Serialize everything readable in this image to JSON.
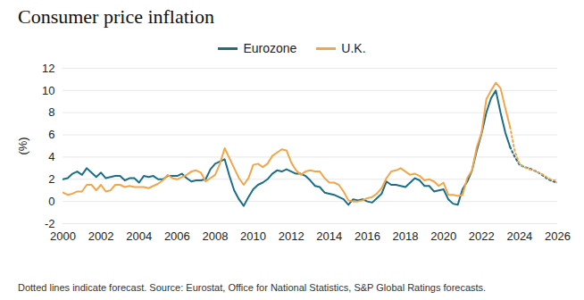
{
  "chart_data": {
    "type": "line",
    "title": "Consumer price inflation",
    "y_label": "(%)",
    "note": "Dotted lines indicate forecast. Source: Eurostat, Office for National Statistics, S&P Global Ratings forecasts.",
    "x": [
      2000,
      2000.25,
      2000.5,
      2000.75,
      2001,
      2001.25,
      2001.5,
      2001.75,
      2002,
      2002.25,
      2002.5,
      2002.75,
      2003,
      2003.25,
      2003.5,
      2003.75,
      2004,
      2004.25,
      2004.5,
      2004.75,
      2005,
      2005.25,
      2005.5,
      2005.75,
      2006,
      2006.25,
      2006.5,
      2006.75,
      2007,
      2007.25,
      2007.5,
      2007.75,
      2008,
      2008.25,
      2008.5,
      2008.75,
      2009,
      2009.25,
      2009.5,
      2009.75,
      2010,
      2010.25,
      2010.5,
      2010.75,
      2011,
      2011.25,
      2011.5,
      2011.75,
      2012,
      2012.25,
      2012.5,
      2012.75,
      2013,
      2013.25,
      2013.5,
      2013.75,
      2014,
      2014.25,
      2014.5,
      2014.75,
      2015,
      2015.25,
      2015.5,
      2015.75,
      2016,
      2016.25,
      2016.5,
      2016.75,
      2017,
      2017.25,
      2017.5,
      2017.75,
      2018,
      2018.25,
      2018.5,
      2018.75,
      2019,
      2019.25,
      2019.5,
      2019.75,
      2020,
      2020.25,
      2020.5,
      2020.75,
      2021,
      2021.25,
      2021.5,
      2021.75,
      2022,
      2022.25,
      2022.5,
      2022.75,
      2023,
      2023.25,
      2023.5,
      2023.75,
      2024,
      2024.25,
      2024.5,
      2024.75,
      2025,
      2025.25,
      2025.5,
      2025.75,
      2026
    ],
    "series": [
      {
        "name": "Eurozone",
        "color": "#1b6e85",
        "line_style": "solid",
        "values": [
          2.0,
          2.1,
          2.5,
          2.7,
          2.4,
          3.0,
          2.6,
          2.2,
          2.6,
          2.1,
          2.2,
          2.3,
          2.3,
          1.9,
          2.1,
          2.1,
          1.7,
          2.3,
          2.2,
          2.3,
          2.0,
          2.0,
          2.3,
          2.3,
          2.3,
          2.5,
          2.1,
          1.8,
          1.9,
          1.9,
          2.0,
          2.9,
          3.4,
          3.6,
          3.8,
          2.3,
          1.0,
          0.2,
          -0.4,
          0.4,
          1.1,
          1.5,
          1.7,
          2.0,
          2.5,
          2.8,
          2.7,
          2.9,
          2.7,
          2.5,
          2.5,
          2.3,
          1.9,
          1.4,
          1.3,
          0.8,
          0.7,
          0.6,
          0.4,
          0.2,
          -0.3,
          0.2,
          0.1,
          0.2,
          0.0,
          -0.1,
          0.3,
          0.7,
          1.8,
          1.5,
          1.5,
          1.4,
          1.3,
          1.7,
          2.1,
          1.9,
          1.4,
          1.4,
          0.9,
          1.0,
          1.1,
          0.2,
          -0.2,
          -0.3,
          1.1,
          1.8,
          2.8,
          4.6,
          6.1,
          8.0,
          9.3,
          10.0,
          8.0,
          6.2,
          4.9,
          null,
          null,
          null,
          null,
          null,
          null,
          null,
          null,
          null,
          null
        ]
      },
      {
        "name": "U.K.",
        "color": "#f2a649",
        "line_style": "solid",
        "values": [
          0.8,
          0.6,
          0.7,
          0.9,
          0.9,
          1.5,
          1.5,
          1.0,
          1.5,
          0.9,
          1.0,
          1.5,
          1.5,
          1.3,
          1.4,
          1.3,
          1.3,
          1.3,
          1.2,
          1.4,
          1.6,
          1.9,
          2.4,
          2.1,
          2.0,
          2.2,
          2.4,
          2.7,
          2.8,
          2.6,
          1.8,
          2.1,
          2.4,
          3.4,
          4.8,
          3.9,
          3.0,
          2.1,
          1.5,
          2.1,
          3.3,
          3.4,
          3.1,
          3.4,
          4.1,
          4.4,
          4.7,
          4.6,
          3.5,
          2.8,
          2.4,
          2.7,
          2.8,
          2.7,
          2.7,
          2.1,
          1.7,
          1.7,
          1.5,
          0.9,
          0.1,
          0.0,
          0.0,
          0.1,
          0.3,
          0.4,
          0.7,
          1.2,
          2.1,
          2.7,
          2.8,
          3.0,
          2.7,
          2.4,
          2.5,
          2.3,
          1.9,
          2.0,
          1.8,
          1.4,
          1.7,
          0.6,
          0.6,
          0.5,
          0.6,
          2.1,
          2.8,
          4.9,
          6.2,
          9.2,
          10.0,
          10.7,
          10.2,
          8.4,
          6.7,
          null,
          null,
          null,
          null,
          null,
          null,
          null,
          null,
          null,
          null
        ]
      },
      {
        "name": "Eurozone",
        "color": "#1b6e85",
        "line_style": "dotted",
        "values": [
          null,
          null,
          null,
          null,
          null,
          null,
          null,
          null,
          null,
          null,
          null,
          null,
          null,
          null,
          null,
          null,
          null,
          null,
          null,
          null,
          null,
          null,
          null,
          null,
          null,
          null,
          null,
          null,
          null,
          null,
          null,
          null,
          null,
          null,
          null,
          null,
          null,
          null,
          null,
          null,
          null,
          null,
          null,
          null,
          null,
          null,
          null,
          null,
          null,
          null,
          null,
          null,
          null,
          null,
          null,
          null,
          null,
          null,
          null,
          null,
          null,
          null,
          null,
          null,
          null,
          null,
          null,
          null,
          null,
          null,
          null,
          null,
          null,
          null,
          null,
          null,
          null,
          null,
          null,
          null,
          null,
          null,
          null,
          null,
          null,
          null,
          null,
          null,
          null,
          null,
          null,
          null,
          null,
          null,
          4.9,
          4.0,
          3.3,
          3.1,
          3.0,
          2.8,
          2.6,
          2.3,
          2.0,
          1.8,
          1.7
        ]
      },
      {
        "name": "U.K.",
        "color": "#f2a649",
        "line_style": "dotted",
        "values": [
          null,
          null,
          null,
          null,
          null,
          null,
          null,
          null,
          null,
          null,
          null,
          null,
          null,
          null,
          null,
          null,
          null,
          null,
          null,
          null,
          null,
          null,
          null,
          null,
          null,
          null,
          null,
          null,
          null,
          null,
          null,
          null,
          null,
          null,
          null,
          null,
          null,
          null,
          null,
          null,
          null,
          null,
          null,
          null,
          null,
          null,
          null,
          null,
          null,
          null,
          null,
          null,
          null,
          null,
          null,
          null,
          null,
          null,
          null,
          null,
          null,
          null,
          null,
          null,
          null,
          null,
          null,
          null,
          null,
          null,
          null,
          null,
          null,
          null,
          null,
          null,
          null,
          null,
          null,
          null,
          null,
          null,
          null,
          null,
          null,
          null,
          null,
          null,
          null,
          null,
          null,
          null,
          null,
          null,
          6.7,
          4.5,
          3.4,
          3.1,
          2.9,
          2.8,
          2.6,
          2.4,
          2.1,
          1.9,
          1.9
        ]
      }
    ],
    "xlim": [
      2000,
      2026
    ],
    "xticks": [
      2000,
      2002,
      2004,
      2006,
      2008,
      2010,
      2012,
      2014,
      2016,
      2018,
      2020,
      2022,
      2024,
      2026
    ],
    "ylim": [
      -2,
      12
    ],
    "yticks": [
      -2,
      0,
      2,
      4,
      6,
      8,
      10,
      12
    ],
    "grid": true
  }
}
